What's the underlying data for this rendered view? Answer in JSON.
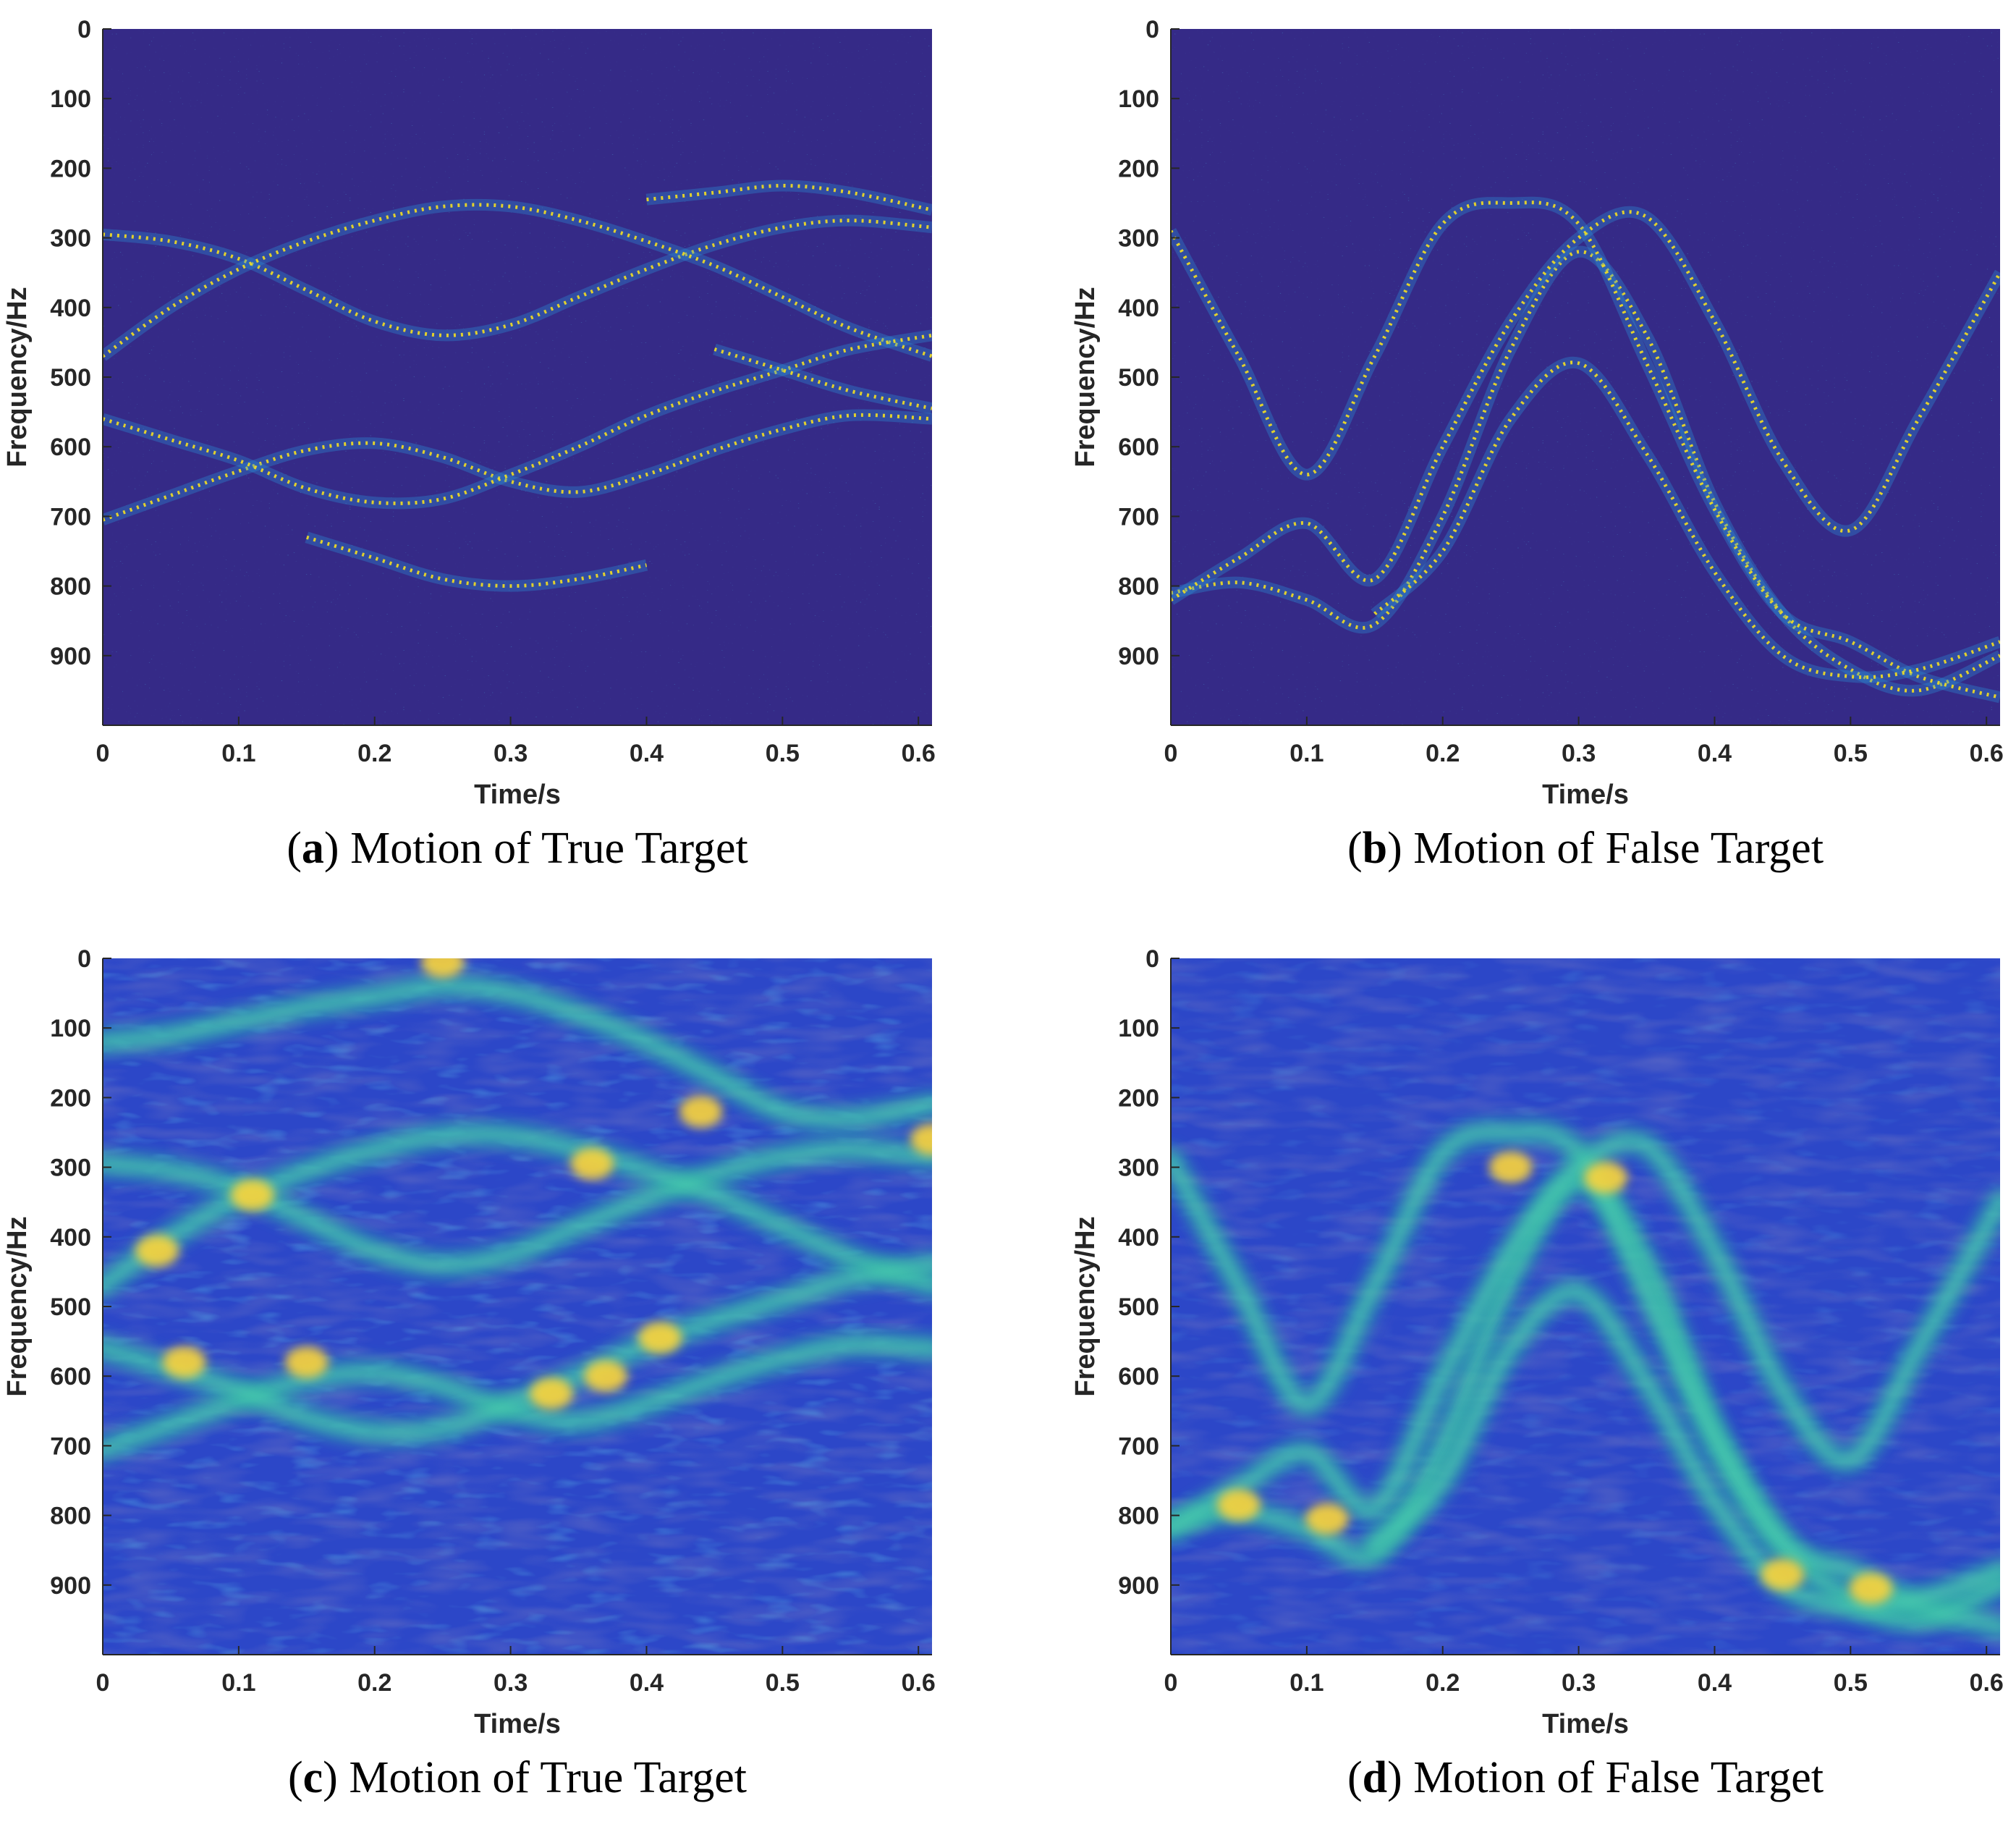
{
  "colors": {
    "background_sparse": "#352a87",
    "background_smooth": "#2c47c8",
    "ridge_sparse": "#f5e020",
    "ridge_smooth": "#36bfa4",
    "peak": "#fbd43a",
    "axis": "#262626"
  },
  "chart_data": [
    {
      "type": "heatmap",
      "style": "sparse",
      "caption_letter": "a",
      "caption_text": "Motion of True Target",
      "xlabel": "Time/s",
      "ylabel": "Frequency/Hz",
      "xlim": [
        0,
        0.61
      ],
      "ylim": [
        1000,
        0
      ],
      "xticks": [
        "0",
        "0.1",
        "0.2",
        "0.3",
        "0.4",
        "0.5",
        "0.6"
      ],
      "yticks": [
        "0",
        "100",
        "200",
        "300",
        "400",
        "500",
        "600",
        "700",
        "800",
        "900"
      ],
      "series": [
        {
          "x": [
            0,
            0.05,
            0.1,
            0.15,
            0.2,
            0.25,
            0.3,
            0.35,
            0.4,
            0.45,
            0.5,
            0.55,
            0.61
          ],
          "y": [
            295,
            305,
            330,
            375,
            420,
            440,
            425,
            385,
            345,
            310,
            285,
            275,
            285
          ]
        },
        {
          "x": [
            0,
            0.05,
            0.1,
            0.15,
            0.2,
            0.25,
            0.3,
            0.35,
            0.4,
            0.45,
            0.5,
            0.55,
            0.61
          ],
          "y": [
            470,
            400,
            345,
            305,
            275,
            255,
            255,
            275,
            305,
            340,
            385,
            430,
            470
          ]
        },
        {
          "x": [
            0,
            0.05,
            0.1,
            0.15,
            0.2,
            0.25,
            0.3,
            0.35,
            0.4,
            0.45,
            0.5,
            0.55,
            0.61
          ],
          "y": [
            705,
            670,
            635,
            605,
            595,
            615,
            650,
            665,
            640,
            605,
            575,
            555,
            560
          ]
        },
        {
          "x": [
            0,
            0.05,
            0.1,
            0.15,
            0.2,
            0.25,
            0.3,
            0.35,
            0.4,
            0.45,
            0.5,
            0.55,
            0.61
          ],
          "y": [
            560,
            590,
            620,
            660,
            680,
            675,
            640,
            600,
            555,
            520,
            490,
            460,
            440
          ]
        },
        {
          "x": [
            0.4,
            0.45,
            0.5,
            0.55,
            0.61
          ],
          "y": [
            245,
            235,
            225,
            235,
            260
          ]
        },
        {
          "x": [
            0.45,
            0.5,
            0.55,
            0.61
          ],
          "y": [
            460,
            490,
            520,
            545
          ]
        },
        {
          "x": [
            0.15,
            0.2,
            0.25,
            0.3,
            0.35,
            0.4
          ],
          "y": [
            730,
            760,
            790,
            800,
            790,
            770
          ]
        }
      ],
      "peaks": []
    },
    {
      "type": "heatmap",
      "style": "sparse",
      "caption_letter": "b",
      "caption_text": "Motion of False Target",
      "xlabel": "Time/s",
      "ylabel": "Frequency/Hz",
      "xlim": [
        0,
        0.61
      ],
      "ylim": [
        1000,
        0
      ],
      "xticks": [
        "0",
        "0.1",
        "0.2",
        "0.3",
        "0.4",
        "0.5",
        "0.6"
      ],
      "yticks": [
        "0",
        "100",
        "200",
        "300",
        "400",
        "500",
        "600",
        "700",
        "800",
        "900"
      ],
      "series": [
        {
          "x": [
            0,
            0.05,
            0.1,
            0.15,
            0.2,
            0.25,
            0.3,
            0.35,
            0.4,
            0.45,
            0.5,
            0.55,
            0.61
          ],
          "y": [
            810,
            795,
            820,
            855,
            700,
            460,
            320,
            440,
            680,
            840,
            920,
            950,
            900
          ]
        },
        {
          "x": [
            0,
            0.05,
            0.1,
            0.15,
            0.2,
            0.25,
            0.3,
            0.35,
            0.4,
            0.45,
            0.5,
            0.55,
            0.61
          ],
          "y": [
            290,
            470,
            640,
            470,
            280,
            250,
            280,
            480,
            690,
            840,
            880,
            930,
            960
          ]
        },
        {
          "x": [
            0,
            0.05,
            0.1,
            0.15,
            0.2,
            0.25,
            0.3,
            0.35,
            0.4,
            0.45,
            0.5,
            0.55,
            0.61
          ],
          "y": [
            820,
            760,
            710,
            790,
            600,
            420,
            300,
            270,
            420,
            620,
            720,
            560,
            350
          ]
        },
        {
          "x": [
            0.15,
            0.2,
            0.25,
            0.3,
            0.35,
            0.4,
            0.45,
            0.5,
            0.55,
            0.61
          ],
          "y": [
            840,
            750,
            560,
            480,
            610,
            780,
            900,
            930,
            920,
            880
          ]
        }
      ],
      "peaks": []
    },
    {
      "type": "heatmap",
      "style": "smooth",
      "caption_letter": "c",
      "caption_text": "Motion of True Target",
      "xlabel": "Time/s",
      "ylabel": "Frequency/Hz",
      "xlim": [
        0,
        0.61
      ],
      "ylim": [
        1000,
        0
      ],
      "xticks": [
        "0",
        "0.1",
        "0.2",
        "0.3",
        "0.4",
        "0.5",
        "0.6"
      ],
      "yticks": [
        "0",
        "100",
        "200",
        "300",
        "400",
        "500",
        "600",
        "700",
        "800",
        "900"
      ],
      "series": [
        {
          "x": [
            0,
            0.05,
            0.1,
            0.15,
            0.2,
            0.25,
            0.3,
            0.35,
            0.4,
            0.45,
            0.5,
            0.55,
            0.61
          ],
          "y": [
            295,
            305,
            330,
            375,
            420,
            440,
            425,
            385,
            345,
            310,
            285,
            275,
            285
          ]
        },
        {
          "x": [
            0,
            0.05,
            0.1,
            0.15,
            0.2,
            0.25,
            0.3,
            0.35,
            0.4,
            0.45,
            0.5,
            0.55,
            0.61
          ],
          "y": [
            470,
            400,
            345,
            305,
            275,
            255,
            255,
            275,
            305,
            340,
            385,
            430,
            470
          ]
        },
        {
          "x": [
            0,
            0.05,
            0.1,
            0.15,
            0.2,
            0.25,
            0.3,
            0.35,
            0.4,
            0.45,
            0.5,
            0.55,
            0.61
          ],
          "y": [
            705,
            670,
            635,
            605,
            595,
            615,
            650,
            665,
            640,
            605,
            575,
            555,
            560
          ]
        },
        {
          "x": [
            0,
            0.05,
            0.1,
            0.15,
            0.2,
            0.25,
            0.3,
            0.35,
            0.4,
            0.45,
            0.5,
            0.55,
            0.61
          ],
          "y": [
            560,
            590,
            620,
            660,
            680,
            675,
            640,
            600,
            555,
            520,
            490,
            460,
            440
          ]
        },
        {
          "x": [
            0,
            0.05,
            0.1,
            0.15,
            0.2,
            0.25,
            0.3,
            0.35,
            0.4,
            0.45,
            0.5,
            0.55,
            0.61
          ],
          "y": [
            120,
            110,
            90,
            70,
            55,
            40,
            50,
            80,
            120,
            170,
            220,
            230,
            210
          ]
        }
      ],
      "peaks": [
        {
          "x": 0.04,
          "y": 420
        },
        {
          "x": 0.06,
          "y": 580
        },
        {
          "x": 0.11,
          "y": 340
        },
        {
          "x": 0.15,
          "y": 580
        },
        {
          "x": 0.25,
          "y": 5
        },
        {
          "x": 0.36,
          "y": 295
        },
        {
          "x": 0.33,
          "y": 625
        },
        {
          "x": 0.37,
          "y": 600
        },
        {
          "x": 0.41,
          "y": 545
        },
        {
          "x": 0.44,
          "y": 220
        },
        {
          "x": 0.61,
          "y": 260
        }
      ]
    },
    {
      "type": "heatmap",
      "style": "smooth",
      "caption_letter": "d",
      "caption_text": "Motion of False Target",
      "xlabel": "Time/s",
      "ylabel": "Frequency/Hz",
      "xlim": [
        0,
        0.61
      ],
      "ylim": [
        1000,
        0
      ],
      "xticks": [
        "0",
        "0.1",
        "0.2",
        "0.3",
        "0.4",
        "0.5",
        "0.6"
      ],
      "yticks": [
        "0",
        "100",
        "200",
        "300",
        "400",
        "500",
        "600",
        "700",
        "800",
        "900"
      ],
      "series": [
        {
          "x": [
            0,
            0.05,
            0.1,
            0.15,
            0.2,
            0.25,
            0.3,
            0.35,
            0.4,
            0.45,
            0.5,
            0.55,
            0.61
          ],
          "y": [
            810,
            795,
            820,
            855,
            700,
            460,
            320,
            440,
            680,
            840,
            920,
            950,
            900
          ]
        },
        {
          "x": [
            0,
            0.05,
            0.1,
            0.15,
            0.2,
            0.25,
            0.3,
            0.35,
            0.4,
            0.45,
            0.5,
            0.55,
            0.61
          ],
          "y": [
            290,
            470,
            640,
            470,
            280,
            250,
            280,
            480,
            690,
            840,
            880,
            930,
            960
          ]
        },
        {
          "x": [
            0,
            0.05,
            0.1,
            0.15,
            0.2,
            0.25,
            0.3,
            0.35,
            0.4,
            0.45,
            0.5,
            0.55,
            0.61
          ],
          "y": [
            820,
            760,
            710,
            790,
            600,
            420,
            300,
            270,
            420,
            620,
            720,
            560,
            350
          ]
        },
        {
          "x": [
            0.15,
            0.2,
            0.25,
            0.3,
            0.35,
            0.4,
            0.45,
            0.5,
            0.55,
            0.61
          ],
          "y": [
            840,
            750,
            560,
            480,
            610,
            780,
            900,
            930,
            920,
            880
          ]
        }
      ],
      "peaks": [
        {
          "x": 0.05,
          "y": 785
        },
        {
          "x": 0.115,
          "y": 805
        },
        {
          "x": 0.25,
          "y": 300
        },
        {
          "x": 0.32,
          "y": 315
        },
        {
          "x": 0.45,
          "y": 885
        },
        {
          "x": 0.515,
          "y": 905
        }
      ]
    }
  ]
}
